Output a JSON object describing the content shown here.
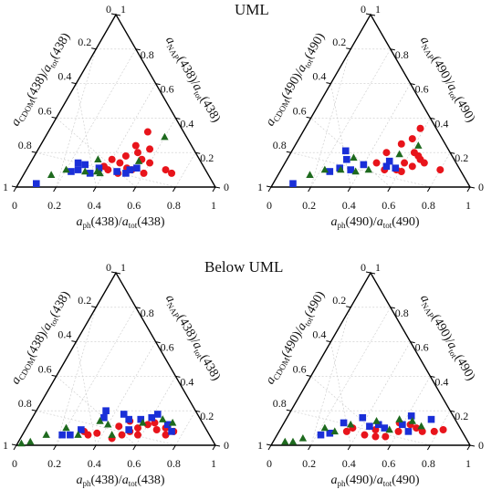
{
  "figure": {
    "sections": [
      {
        "title": "UML"
      },
      {
        "title": "Below UML"
      }
    ],
    "legend": [],
    "colors": {
      "circle": "#e8141b",
      "square": "#1a2fd8",
      "triangle": "#1e6a1e",
      "grid": "#c9c9c9",
      "axis": "#000000"
    }
  },
  "chart_data": [
    {
      "type": "ternary-scatter",
      "section": "UML",
      "wavelength": "438",
      "axes": {
        "bottom": {
          "label": "a_ph(438)/a_tot(438)",
          "ticks": [
            "0",
            "0.2",
            "0.4",
            "0.6",
            "0.8",
            "1"
          ]
        },
        "left": {
          "label": "a_CDOM(438)/a_tot(438)",
          "ticks": [
            "0",
            "0.2",
            "0.4",
            "0.6",
            "0.8",
            "1"
          ]
        },
        "right": {
          "label": "a_NAP(438)/a_tot(438)",
          "ticks": [
            "0",
            "0.2",
            "0.4",
            "0.6",
            "0.8",
            "1"
          ]
        }
      },
      "grid": true,
      "series": [
        {
          "marker": "circle",
          "points": [
            [
              0.5,
              0.11
            ],
            [
              0.53,
              0.1
            ],
            [
              0.45,
              0.14
            ],
            [
              0.7,
              0.1
            ],
            [
              0.46,
              0.18
            ],
            [
              0.48,
              0.24
            ],
            [
              0.51,
              0.2
            ],
            [
              0.55,
              0.16
            ],
            [
              0.4,
              0.16
            ],
            [
              0.5,
              0.32
            ],
            [
              0.74,
              0.08
            ],
            [
              0.41,
              0.1
            ],
            [
              0.38,
              0.12
            ],
            [
              0.6,
              0.14
            ],
            [
              0.56,
              0.22
            ],
            [
              0.47,
              0.08
            ],
            [
              0.6,
              0.08
            ]
          ]
        },
        {
          "marker": "square",
          "points": [
            [
              0.09,
              0.02
            ],
            [
              0.23,
              0.09
            ],
            [
              0.26,
              0.1
            ],
            [
              0.33,
              0.08
            ],
            [
              0.46,
              0.09
            ],
            [
              0.51,
              0.08
            ],
            [
              0.52,
              0.1
            ],
            [
              0.55,
              0.11
            ],
            [
              0.28,
              0.13
            ],
            [
              0.24,
              0.14
            ],
            [
              0.36,
              0.11
            ]
          ]
        },
        {
          "marker": "triangle",
          "points": [
            [
              0.14,
              0.07
            ],
            [
              0.2,
              0.1
            ],
            [
              0.3,
              0.09
            ],
            [
              0.36,
              0.09
            ],
            [
              0.54,
              0.15
            ],
            [
              0.6,
              0.29
            ],
            [
              0.33,
              0.16
            ],
            [
              0.38,
              0.08
            ]
          ]
        }
      ]
    },
    {
      "type": "ternary-scatter",
      "section": "UML",
      "wavelength": "490",
      "axes": {
        "bottom": {
          "label": "a_ph(490)/a_tot(490)",
          "ticks": [
            "0",
            "0.2",
            "0.4",
            "0.6",
            "0.8",
            "1"
          ]
        },
        "left": {
          "label": "a_CDOM(490)/a_tot(490)",
          "ticks": [
            "0",
            "0.2",
            "0.4",
            "0.6",
            "0.8",
            "1"
          ]
        },
        "right": {
          "label": "a_NAP(490)/a_tot(490)",
          "ticks": [
            "0",
            "0.2",
            "0.4",
            "0.6",
            "0.8",
            "1"
          ]
        }
      },
      "grid": true,
      "series": [
        {
          "marker": "circle",
          "points": [
            [
              0.6,
              0.14
            ],
            [
              0.65,
              0.18
            ],
            [
              0.67,
              0.16
            ],
            [
              0.8,
              0.1
            ],
            [
              0.53,
              0.25
            ],
            [
              0.57,
              0.28
            ],
            [
              0.62,
              0.2
            ],
            [
              0.48,
              0.2
            ],
            [
              0.58,
              0.34
            ],
            [
              0.52,
              0.1
            ],
            [
              0.46,
              0.14
            ],
            [
              0.58,
              0.1
            ],
            [
              0.65,
              0.12
            ],
            [
              0.7,
              0.14
            ],
            [
              0.61,
              0.09
            ]
          ]
        },
        {
          "marker": "square",
          "points": [
            [
              0.1,
              0.02
            ],
            [
              0.25,
              0.09
            ],
            [
              0.29,
              0.11
            ],
            [
              0.35,
              0.1
            ],
            [
              0.52,
              0.12
            ],
            [
              0.57,
              0.11
            ],
            [
              0.52,
              0.15
            ],
            [
              0.3,
              0.16
            ],
            [
              0.27,
              0.21
            ],
            [
              0.4,
              0.13
            ]
          ]
        },
        {
          "marker": "triangle",
          "points": [
            [
              0.16,
              0.07
            ],
            [
              0.22,
              0.1
            ],
            [
              0.3,
              0.1
            ],
            [
              0.38,
              0.09
            ],
            [
              0.55,
              0.19
            ],
            [
              0.62,
              0.24
            ],
            [
              0.33,
              0.17
            ],
            [
              0.44,
              0.1
            ]
          ]
        }
      ]
    },
    {
      "type": "ternary-scatter",
      "section": "Below UML",
      "wavelength": "438",
      "axes": {
        "bottom": {
          "label": "a_ph(438)/a_tot(438)",
          "ticks": [
            "0",
            "0.2",
            "0.4",
            "0.6",
            "0.8",
            "1"
          ]
        },
        "left": {
          "label": "a_CDOM(438)/a_tot(438)",
          "ticks": [
            "0",
            "0.2",
            "0.4",
            "0.6",
            "0.8",
            "1"
          ]
        },
        "right": {
          "label": "a_NAP(438)/a_tot(438)",
          "ticks": [
            "0",
            "0.2",
            "0.4",
            "0.6",
            "0.8",
            "1"
          ]
        }
      },
      "grid": true,
      "series": [
        {
          "marker": "circle",
          "points": [
            [
              0.3,
              0.08
            ],
            [
              0.33,
              0.06
            ],
            [
              0.46,
              0.04
            ],
            [
              0.5,
              0.06
            ],
            [
              0.53,
              0.08
            ],
            [
              0.56,
              0.1
            ],
            [
              0.6,
              0.12
            ],
            [
              0.63,
              0.13
            ],
            [
              0.7,
              0.1
            ],
            [
              0.75,
              0.08
            ],
            [
              0.72,
              0.06
            ],
            [
              0.5,
              0.14
            ],
            [
              0.58,
              0.06
            ],
            [
              0.66,
              0.09
            ],
            [
              0.46,
              0.11
            ],
            [
              0.37,
              0.07
            ]
          ]
        },
        {
          "marker": "square",
          "points": [
            [
              0.2,
              0.06
            ],
            [
              0.24,
              0.06
            ],
            [
              0.35,
              0.2
            ],
            [
              0.36,
              0.16
            ],
            [
              0.49,
              0.15
            ],
            [
              0.55,
              0.15
            ],
            [
              0.6,
              0.16
            ],
            [
              0.7,
              0.12
            ],
            [
              0.62,
              0.18
            ],
            [
              0.74,
              0.08
            ],
            [
              0.52,
              0.09
            ],
            [
              0.28,
              0.09
            ],
            [
              0.45,
              0.18
            ]
          ]
        },
        {
          "marker": "triangle",
          "points": [
            [
              0.02,
              0.01
            ],
            [
              0.06,
              0.02
            ],
            [
              0.12,
              0.06
            ],
            [
              0.2,
              0.1
            ],
            [
              0.28,
              0.06
            ],
            [
              0.4,
              0.12
            ],
            [
              0.57,
              0.13
            ],
            [
              0.66,
              0.15
            ],
            [
              0.72,
              0.13
            ],
            [
              0.35,
              0.14
            ],
            [
              0.45,
              0.06
            ]
          ]
        }
      ]
    },
    {
      "type": "ternary-scatter",
      "section": "Below UML",
      "wavelength": "490",
      "axes": {
        "bottom": {
          "label": "a_ph(490)/a_tot(490)",
          "ticks": [
            "0",
            "0.2",
            "0.4",
            "0.6",
            "0.8",
            "1"
          ]
        },
        "left": {
          "label": "a_CDOM(490)/a_tot(490)",
          "ticks": [
            "0",
            "0.2",
            "0.4",
            "0.6",
            "0.8",
            "1"
          ]
        },
        "right": {
          "label": "a_NAP(490)/a_tot(490)",
          "ticks": [
            "0",
            "0.2",
            "0.4",
            "0.6",
            "0.8",
            "1"
          ]
        }
      },
      "grid": true,
      "series": [
        {
          "marker": "circle",
          "points": [
            [
              0.34,
              0.08
            ],
            [
              0.44,
              0.06
            ],
            [
              0.5,
              0.05
            ],
            [
              0.55,
              0.05
            ],
            [
              0.6,
              0.08
            ],
            [
              0.64,
              0.12
            ],
            [
              0.68,
              0.1
            ],
            [
              0.78,
              0.08
            ],
            [
              0.82,
              0.09
            ],
            [
              0.58,
              0.13
            ],
            [
              0.36,
              0.1
            ],
            [
              0.48,
              0.09
            ],
            [
              0.72,
              0.08
            ]
          ]
        },
        {
          "marker": "square",
          "points": [
            [
              0.22,
              0.06
            ],
            [
              0.26,
              0.07
            ],
            [
              0.3,
              0.13
            ],
            [
              0.38,
              0.16
            ],
            [
              0.48,
              0.12
            ],
            [
              0.52,
              0.1
            ],
            [
              0.6,
              0.12
            ],
            [
              0.62,
              0.17
            ],
            [
              0.65,
              0.08
            ],
            [
              0.73,
              0.15
            ],
            [
              0.44,
              0.11
            ]
          ]
        },
        {
          "marker": "triangle",
          "points": [
            [
              0.06,
              0.02
            ],
            [
              0.1,
              0.02
            ],
            [
              0.14,
              0.04
            ],
            [
              0.22,
              0.1
            ],
            [
              0.28,
              0.08
            ],
            [
              0.34,
              0.12
            ],
            [
              0.46,
              0.14
            ],
            [
              0.57,
              0.15
            ],
            [
              0.64,
              0.14
            ],
            [
              0.55,
              0.09
            ],
            [
              0.7,
              0.11
            ]
          ]
        }
      ]
    }
  ]
}
